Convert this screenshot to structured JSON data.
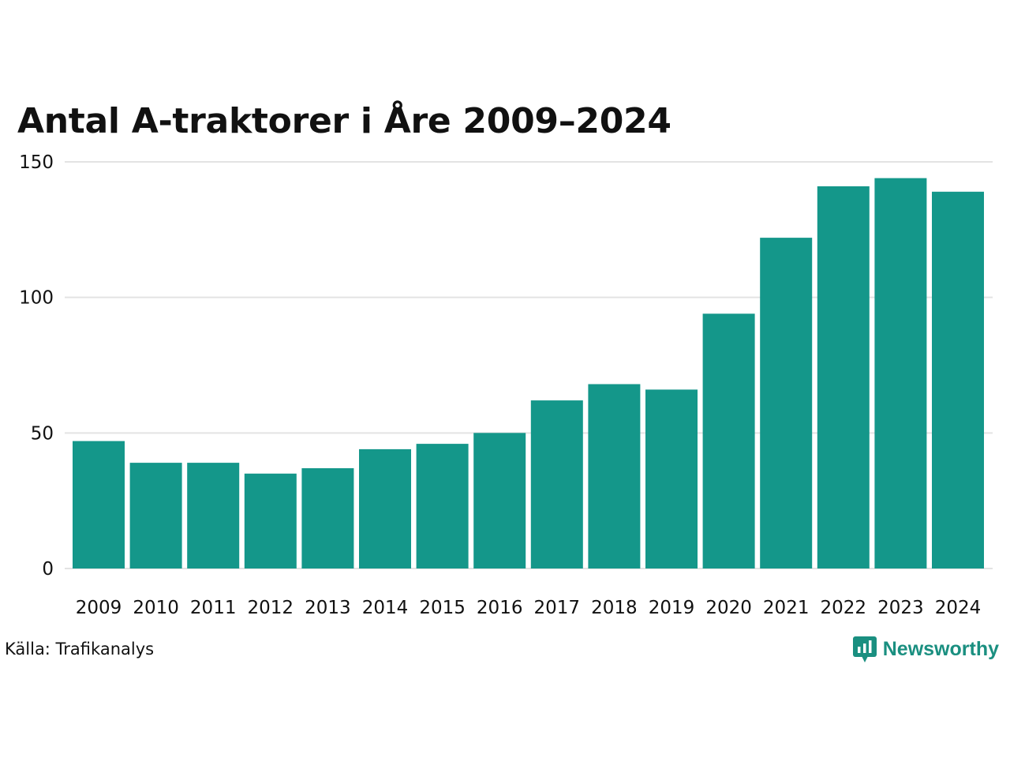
{
  "chart_data": {
    "type": "bar",
    "title": "Antal A-traktorer i Åre 2009–2024",
    "xlabel": "",
    "ylabel": "",
    "categories": [
      "2009",
      "2010",
      "2011",
      "2012",
      "2013",
      "2014",
      "2015",
      "2016",
      "2017",
      "2018",
      "2019",
      "2020",
      "2021",
      "2022",
      "2023",
      "2024"
    ],
    "values": [
      47,
      39,
      39,
      35,
      37,
      44,
      46,
      50,
      62,
      68,
      66,
      94,
      122,
      141,
      144,
      139
    ],
    "ylim": [
      0,
      150
    ],
    "yticks": [
      0,
      50,
      100,
      150
    ],
    "grid": true,
    "bar_color": "#14978a",
    "gridline_color": "#e3e3e3"
  },
  "source": "Källa: Trafikanalys",
  "brand": {
    "name": "Newsworthy",
    "color": "#1a8f80",
    "icon": "newsworthy-logo-icon"
  }
}
